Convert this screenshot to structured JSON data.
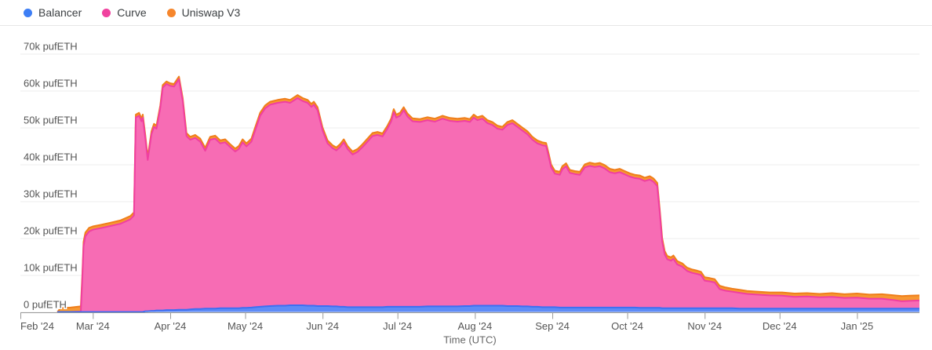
{
  "legend": {
    "items": [
      {
        "label": "Balancer",
        "color": "#3d7ef5"
      },
      {
        "label": "Curve",
        "color": "#f0429f"
      },
      {
        "label": "Uniswap V3",
        "color": "#f6862c"
      }
    ]
  },
  "chart_data": {
    "type": "area",
    "stacked": true,
    "title": "",
    "xlabel": "Time (UTC)",
    "ylabel": "pufETH",
    "unit": "pufETH",
    "grid": true,
    "legend_position": "top-left",
    "ylim": [
      0,
      75000
    ],
    "x_axis_days": 360,
    "x_start_label": "Feb 1 2024",
    "y_ticks": [
      {
        "value": 0,
        "label": "0 pufETH"
      },
      {
        "value": 10000,
        "label": "10k pufETH"
      },
      {
        "value": 20000,
        "label": "20k pufETH"
      },
      {
        "value": 30000,
        "label": "30k pufETH"
      },
      {
        "value": 40000,
        "label": "40k pufETH"
      },
      {
        "value": 50000,
        "label": "50k pufETH"
      },
      {
        "value": 60000,
        "label": "60k pufETH"
      },
      {
        "value": 70000,
        "label": "70k pufETH"
      }
    ],
    "x_ticks": [
      {
        "day": 0,
        "label": "Feb '24"
      },
      {
        "day": 29,
        "label": "Mar '24"
      },
      {
        "day": 60,
        "label": "Apr '24"
      },
      {
        "day": 90,
        "label": "May '24"
      },
      {
        "day": 121,
        "label": "Jun '24"
      },
      {
        "day": 151,
        "label": "Jul '24"
      },
      {
        "day": 182,
        "label": "Aug '24"
      },
      {
        "day": 213,
        "label": "Sep '24"
      },
      {
        "day": 243,
        "label": "Oct '24"
      },
      {
        "day": 274,
        "label": "Nov '24"
      },
      {
        "day": 304,
        "label": "Dec '24"
      },
      {
        "day": 335,
        "label": "Jan '25"
      }
    ],
    "series": [
      {
        "name": "Balancer",
        "fill": "#5e8bf7",
        "stroke": "#3d6ff2"
      },
      {
        "name": "Curve",
        "fill": "#f76cb4",
        "stroke": "#f03fa1"
      },
      {
        "name": "Uniswap V3",
        "fill": "#f79833",
        "stroke": "#ef7e1b"
      }
    ],
    "samples_format": [
      "day_since_feb1_2024",
      "balancer_pufETH",
      "curve_pufETH",
      "uniswapV3_pufETH"
    ],
    "samples": [
      [
        14.8,
        0,
        0,
        0
      ],
      [
        15.2,
        0,
        0,
        300
      ],
      [
        16,
        0,
        0,
        1000
      ],
      [
        20,
        0,
        0,
        1200
      ],
      [
        24.2,
        0,
        100,
        1400
      ],
      [
        24.8,
        0,
        8800,
        1200
      ],
      [
        25.3,
        0,
        17900,
        1100
      ],
      [
        26,
        0,
        20500,
        1000
      ],
      [
        27.5,
        0,
        21800,
        1000
      ],
      [
        29,
        0,
        22300,
        900
      ],
      [
        32,
        0,
        22700,
        900
      ],
      [
        36,
        0,
        23300,
        900
      ],
      [
        40,
        0,
        23900,
        900
      ],
      [
        44,
        0,
        25100,
        900
      ],
      [
        45.5,
        0,
        26200,
        800
      ],
      [
        46.2,
        0,
        52700,
        800
      ],
      [
        47.5,
        0,
        53200,
        800
      ],
      [
        48.5,
        0,
        51700,
        800
      ],
      [
        49,
        0,
        52700,
        800
      ],
      [
        50,
        200,
        47000,
        800
      ],
      [
        51,
        200,
        41000,
        800
      ],
      [
        52.5,
        300,
        47900,
        800
      ],
      [
        53.5,
        300,
        49900,
        800
      ],
      [
        54.5,
        400,
        49300,
        800
      ],
      [
        56,
        400,
        54900,
        700
      ],
      [
        57,
        400,
        60400,
        700
      ],
      [
        58.5,
        500,
        61300,
        700
      ],
      [
        60,
        500,
        60800,
        700
      ],
      [
        61.5,
        500,
        60600,
        700
      ],
      [
        63.5,
        600,
        62500,
        700
      ],
      [
        65,
        600,
        56700,
        700
      ],
      [
        66.5,
        600,
        47100,
        800
      ],
      [
        68,
        700,
        46000,
        800
      ],
      [
        70,
        800,
        46400,
        800
      ],
      [
        72,
        800,
        45400,
        800
      ],
      [
        74,
        900,
        42800,
        800
      ],
      [
        76,
        900,
        45800,
        800
      ],
      [
        78,
        900,
        46100,
        800
      ],
      [
        80,
        1000,
        44700,
        800
      ],
      [
        82,
        1000,
        45000,
        800
      ],
      [
        84,
        1000,
        43700,
        800
      ],
      [
        86,
        1000,
        42500,
        800
      ],
      [
        87.5,
        1000,
        43200,
        800
      ],
      [
        89,
        1100,
        44900,
        800
      ],
      [
        90.5,
        1100,
        43800,
        800
      ],
      [
        92.5,
        1200,
        45000,
        800
      ],
      [
        94,
        1300,
        47900,
        800
      ],
      [
        96,
        1400,
        51800,
        800
      ],
      [
        98,
        1500,
        53700,
        800
      ],
      [
        100,
        1600,
        54600,
        800
      ],
      [
        103,
        1700,
        55000,
        800
      ],
      [
        106,
        1700,
        55300,
        800
      ],
      [
        108,
        1800,
        54900,
        800
      ],
      [
        111,
        1800,
        56200,
        800
      ],
      [
        113,
        1800,
        55400,
        800
      ],
      [
        115,
        1700,
        55000,
        800
      ],
      [
        116.5,
        1700,
        53900,
        800
      ],
      [
        117.5,
        1700,
        54500,
        800
      ],
      [
        119,
        1600,
        53100,
        800
      ],
      [
        121,
        1600,
        47600,
        800
      ],
      [
        123,
        1600,
        44100,
        800
      ],
      [
        125,
        1500,
        42900,
        800
      ],
      [
        126.5,
        1500,
        42300,
        800
      ],
      [
        128,
        1400,
        43300,
        800
      ],
      [
        129.5,
        1400,
        44600,
        800
      ],
      [
        131,
        1300,
        42900,
        800
      ],
      [
        133,
        1300,
        41400,
        800
      ],
      [
        135,
        1300,
        42100,
        800
      ],
      [
        137,
        1300,
        43400,
        800
      ],
      [
        139,
        1300,
        44900,
        800
      ],
      [
        141,
        1300,
        46400,
        800
      ],
      [
        143,
        1300,
        46700,
        800
      ],
      [
        145,
        1300,
        46300,
        800
      ],
      [
        147,
        1400,
        48300,
        800
      ],
      [
        148.5,
        1400,
        50300,
        800
      ],
      [
        149.5,
        1400,
        52800,
        800
      ],
      [
        150.5,
        1400,
        51300,
        800
      ],
      [
        152,
        1400,
        51800,
        800
      ],
      [
        153.5,
        1400,
        53300,
        800
      ],
      [
        155,
        1400,
        51600,
        800
      ],
      [
        157,
        1400,
        50300,
        800
      ],
      [
        160,
        1400,
        50100,
        800
      ],
      [
        163,
        1500,
        50500,
        800
      ],
      [
        166,
        1500,
        50100,
        800
      ],
      [
        169,
        1500,
        50900,
        800
      ],
      [
        172,
        1500,
        50300,
        800
      ],
      [
        175,
        1500,
        50100,
        800
      ],
      [
        178,
        1600,
        50200,
        800
      ],
      [
        180,
        1600,
        49900,
        800
      ],
      [
        181.5,
        1700,
        51000,
        800
      ],
      [
        183,
        1700,
        50300,
        800
      ],
      [
        185,
        1700,
        50700,
        800
      ],
      [
        187,
        1700,
        49500,
        800
      ],
      [
        189,
        1700,
        49000,
        800
      ],
      [
        191,
        1700,
        48000,
        800
      ],
      [
        193,
        1700,
        47700,
        800
      ],
      [
        195,
        1600,
        49100,
        800
      ],
      [
        197,
        1600,
        49600,
        800
      ],
      [
        199,
        1600,
        48600,
        800
      ],
      [
        201,
        1500,
        47700,
        800
      ],
      [
        203,
        1500,
        46700,
        800
      ],
      [
        205,
        1400,
        45300,
        800
      ],
      [
        207,
        1400,
        44300,
        800
      ],
      [
        209,
        1300,
        43900,
        800
      ],
      [
        210.5,
        1300,
        43700,
        800
      ],
      [
        211.5,
        1300,
        40900,
        800
      ],
      [
        212.5,
        1300,
        37900,
        800
      ],
      [
        214,
        1300,
        36200,
        800
      ],
      [
        216,
        1200,
        36000,
        800
      ],
      [
        217,
        1200,
        37500,
        800
      ],
      [
        218.5,
        1200,
        38300,
        800
      ],
      [
        220,
        1200,
        36500,
        800
      ],
      [
        222,
        1200,
        36200,
        800
      ],
      [
        224,
        1200,
        36000,
        800
      ],
      [
        226,
        1200,
        38000,
        800
      ],
      [
        228,
        1200,
        38400,
        900
      ],
      [
        230,
        1200,
        38100,
        900
      ],
      [
        232,
        1200,
        38300,
        900
      ],
      [
        234,
        1200,
        37700,
        900
      ],
      [
        236,
        1200,
        36700,
        900
      ],
      [
        238,
        1200,
        36400,
        900
      ],
      [
        240,
        1200,
        36700,
        900
      ],
      [
        242,
        1200,
        36100,
        900
      ],
      [
        244,
        1200,
        35500,
        900
      ],
      [
        246,
        1200,
        35100,
        900
      ],
      [
        248,
        1100,
        35000,
        900
      ],
      [
        250,
        1100,
        34400,
        900
      ],
      [
        252,
        1100,
        34800,
        900
      ],
      [
        253.5,
        1100,
        34200,
        900
      ],
      [
        255,
        1100,
        33000,
        900
      ],
      [
        256,
        1100,
        26000,
        900
      ],
      [
        257,
        1000,
        18100,
        900
      ],
      [
        258,
        1000,
        14600,
        900
      ],
      [
        259,
        1000,
        13300,
        900
      ],
      [
        260.5,
        1000,
        12900,
        900
      ],
      [
        261.5,
        1000,
        13400,
        900
      ],
      [
        263,
        1000,
        11900,
        900
      ],
      [
        265,
        1000,
        11300,
        900
      ],
      [
        267,
        1000,
        10100,
        900
      ],
      [
        269,
        1000,
        9600,
        900
      ],
      [
        271,
        1000,
        9300,
        900
      ],
      [
        272.5,
        1000,
        9000,
        900
      ],
      [
        274,
        1000,
        7500,
        900
      ],
      [
        276,
        1000,
        7300,
        900
      ],
      [
        278,
        1000,
        7000,
        900
      ],
      [
        280,
        1000,
        5200,
        900
      ],
      [
        282,
        1000,
        4800,
        900
      ],
      [
        285,
        1000,
        4500,
        800
      ],
      [
        288,
        900,
        4300,
        800
      ],
      [
        291,
        900,
        4000,
        800
      ],
      [
        295,
        900,
        3800,
        800
      ],
      [
        300,
        900,
        3600,
        800
      ],
      [
        305,
        900,
        3500,
        900
      ],
      [
        310,
        900,
        3200,
        900
      ],
      [
        315,
        900,
        3300,
        900
      ],
      [
        320,
        900,
        3100,
        900
      ],
      [
        325,
        900,
        3200,
        1000
      ],
      [
        330,
        900,
        2900,
        1000
      ],
      [
        335,
        900,
        3000,
        1100
      ],
      [
        340,
        900,
        2700,
        1100
      ],
      [
        345,
        900,
        2700,
        1200
      ],
      [
        350,
        900,
        2300,
        1300
      ],
      [
        353,
        900,
        2000,
        1400
      ],
      [
        356,
        900,
        2100,
        1400
      ],
      [
        360,
        900,
        2200,
        1400
      ]
    ]
  },
  "axis_style": {
    "grid_color": "#ececec",
    "axis_color": "#999999",
    "x_label_color": "#555555",
    "y_label_color": "#555555",
    "axis_title_color": "#666666"
  }
}
